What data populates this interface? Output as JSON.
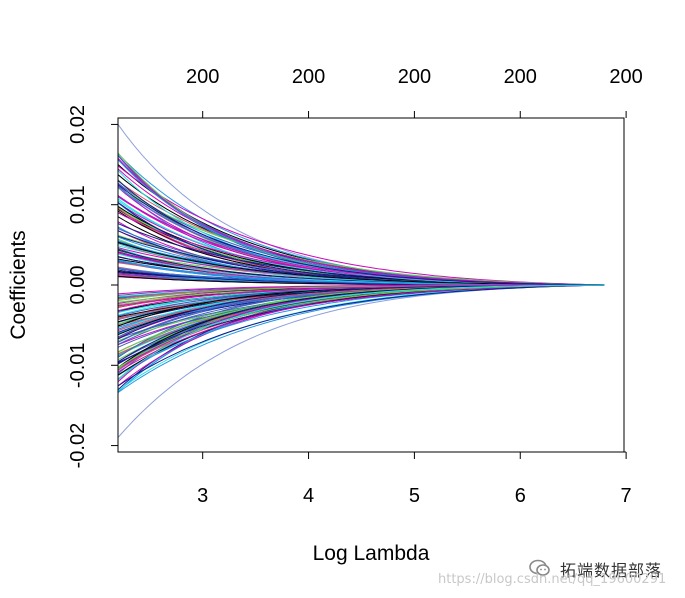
{
  "chart_data": {
    "type": "line",
    "title": "",
    "xlabel": "Log Lambda",
    "ylabel": "Coefficients",
    "xlim": [
      2.2,
      6.98
    ],
    "ylim": [
      -0.0208,
      0.0208
    ],
    "x_ticks": [
      3,
      4,
      5,
      6,
      7
    ],
    "y_ticks": [
      -0.02,
      -0.01,
      0.0,
      0.01,
      0.02
    ],
    "x_tick_labels": [
      "3",
      "4",
      "5",
      "6",
      "7"
    ],
    "y_tick_labels": [
      "-0.02",
      "-0.01",
      "0.00",
      "0.01",
      "0.02"
    ],
    "top_axis_ticks": [
      3,
      4,
      5,
      6,
      7
    ],
    "top_axis_labels": [
      "200",
      "200",
      "200",
      "200",
      "200"
    ],
    "x_start": 2.2,
    "x_end": 6.8,
    "end_value": 0.0,
    "series_count": 200,
    "path_shape": "exponential decay toward zero",
    "positive_start_range": [
      0.001,
      0.02
    ],
    "negative_start_range": [
      -0.019,
      -0.001
    ],
    "outer_paths": {
      "upper_start": 0.02,
      "lower_start": -0.019
    },
    "colors": [
      "#000000",
      "#df536b",
      "#61d04f",
      "#2297e6",
      "#28e2e5",
      "#cd0bbc",
      "#3f5fbf",
      "#1a1a8c"
    ],
    "grid": false,
    "legend": "none"
  },
  "watermark": {
    "brand": "拓端数据部落",
    "url": "https://blog.csdn.net/qq_19600291"
  }
}
